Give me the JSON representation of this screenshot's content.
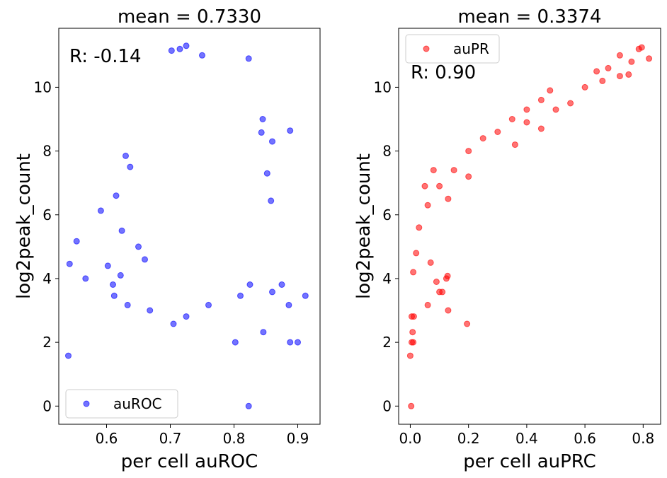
{
  "chart_data": [
    {
      "type": "scatter",
      "title": "mean = 0.7330",
      "xlabel": "per cell auROC",
      "ylabel": "log2peak_count",
      "xlim": [
        0.525,
        0.935
      ],
      "ylim": [
        -0.57,
        11.85
      ],
      "xticks": [
        0.6,
        0.7,
        0.8,
        0.9
      ],
      "yticks": [
        0,
        2,
        4,
        6,
        8,
        10
      ],
      "xtick_labels": [
        "0.6",
        "0.7",
        "0.8",
        "0.9"
      ],
      "ytick_labels": [
        "0",
        "2",
        "4",
        "6",
        "8",
        "10"
      ],
      "color": "#0000ff",
      "legend": {
        "label": "auROC",
        "location": "lower-left"
      },
      "annotation": {
        "text": "R: -0.14",
        "color": "#0000ff",
        "location": "top-left"
      },
      "series": [
        {
          "name": "auROC",
          "points": [
            [
              0.54,
              1.58
            ],
            [
              0.823,
              0.0
            ],
            [
              0.802,
              2.0
            ],
            [
              0.888,
              2.0
            ],
            [
              0.9,
              2.0
            ],
            [
              0.846,
              2.32
            ],
            [
              0.705,
              2.58
            ],
            [
              0.912,
              3.46
            ],
            [
              0.886,
              3.17
            ],
            [
              0.542,
              4.46
            ],
            [
              0.567,
              4.0
            ],
            [
              0.553,
              5.17
            ],
            [
              0.591,
              6.13
            ],
            [
              0.61,
              3.81
            ],
            [
              0.612,
              3.46
            ],
            [
              0.633,
              3.17
            ],
            [
              0.668,
              3.0
            ],
            [
              0.725,
              2.81
            ],
            [
              0.76,
              3.17
            ],
            [
              0.81,
              3.46
            ],
            [
              0.825,
              3.81
            ],
            [
              0.86,
              3.58
            ],
            [
              0.875,
              3.81
            ],
            [
              0.858,
              6.44
            ],
            [
              0.843,
              8.58
            ],
            [
              0.888,
              8.64
            ],
            [
              0.823,
              10.9
            ],
            [
              0.845,
              9.0
            ],
            [
              0.86,
              8.3
            ],
            [
              0.852,
              7.3
            ],
            [
              0.715,
              11.2
            ],
            [
              0.725,
              11.3
            ],
            [
              0.702,
              11.15
            ],
            [
              0.75,
              11.0
            ],
            [
              0.615,
              6.6
            ],
            [
              0.63,
              7.85
            ],
            [
              0.637,
              7.5
            ],
            [
              0.624,
              5.5
            ],
            [
              0.602,
              4.4
            ],
            [
              0.622,
              4.1
            ],
            [
              0.65,
              5.0
            ],
            [
              0.66,
              4.6
            ]
          ]
        }
      ]
    },
    {
      "type": "scatter",
      "title": "mean = 0.3374",
      "xlabel": "per cell auPRC",
      "ylabel": "log2peak_count",
      "xlim": [
        -0.04,
        0.86
      ],
      "ylim": [
        -0.57,
        11.85
      ],
      "xticks": [
        0.0,
        0.2,
        0.4,
        0.6,
        0.8
      ],
      "yticks": [
        0,
        2,
        4,
        6,
        8,
        10
      ],
      "xtick_labels": [
        "0.0",
        "0.2",
        "0.4",
        "0.6",
        "0.8"
      ],
      "ytick_labels": [
        "0",
        "2",
        "4",
        "6",
        "8",
        "10"
      ],
      "color": "#ff0000",
      "legend": {
        "label": "auPR",
        "location": "upper-left"
      },
      "annotation": {
        "text": "R: 0.90",
        "color": "#ff0000",
        "location": "top-left"
      },
      "series": [
        {
          "name": "auPR",
          "points": [
            [
              0.003,
              0.0
            ],
            [
              0.0,
              1.58
            ],
            [
              0.005,
              2.0
            ],
            [
              0.01,
              2.0
            ],
            [
              0.008,
              2.32
            ],
            [
              0.005,
              2.81
            ],
            [
              0.012,
              2.81
            ],
            [
              0.195,
              2.58
            ],
            [
              0.13,
              3.0
            ],
            [
              0.06,
              3.17
            ],
            [
              0.1,
              3.58
            ],
            [
              0.11,
              3.58
            ],
            [
              0.128,
              4.08
            ],
            [
              0.124,
              4.0
            ],
            [
              0.82,
              10.9
            ],
            [
              0.795,
              11.25
            ],
            [
              0.785,
              11.2
            ],
            [
              0.72,
              11.0
            ],
            [
              0.76,
              10.8
            ],
            [
              0.68,
              10.6
            ],
            [
              0.64,
              10.5
            ],
            [
              0.75,
              10.4
            ],
            [
              0.72,
              10.35
            ],
            [
              0.48,
              9.9
            ],
            [
              0.45,
              9.6
            ],
            [
              0.4,
              9.3
            ],
            [
              0.35,
              9.0
            ],
            [
              0.3,
              8.6
            ],
            [
              0.25,
              8.4
            ],
            [
              0.2,
              8.0
            ],
            [
              0.15,
              7.4
            ],
            [
              0.1,
              6.9
            ],
            [
              0.06,
              6.3
            ],
            [
              0.03,
              5.6
            ],
            [
              0.02,
              4.8
            ],
            [
              0.01,
              4.2
            ],
            [
              0.36,
              8.2
            ],
            [
              0.45,
              8.7
            ],
            [
              0.4,
              8.9
            ],
            [
              0.55,
              9.5
            ],
            [
              0.5,
              9.3
            ],
            [
              0.6,
              10.0
            ],
            [
              0.66,
              10.2
            ],
            [
              0.2,
              7.2
            ],
            [
              0.13,
              6.5
            ],
            [
              0.08,
              7.4
            ],
            [
              0.05,
              6.9
            ],
            [
              0.07,
              4.5
            ],
            [
              0.09,
              3.9
            ]
          ]
        }
      ]
    }
  ]
}
